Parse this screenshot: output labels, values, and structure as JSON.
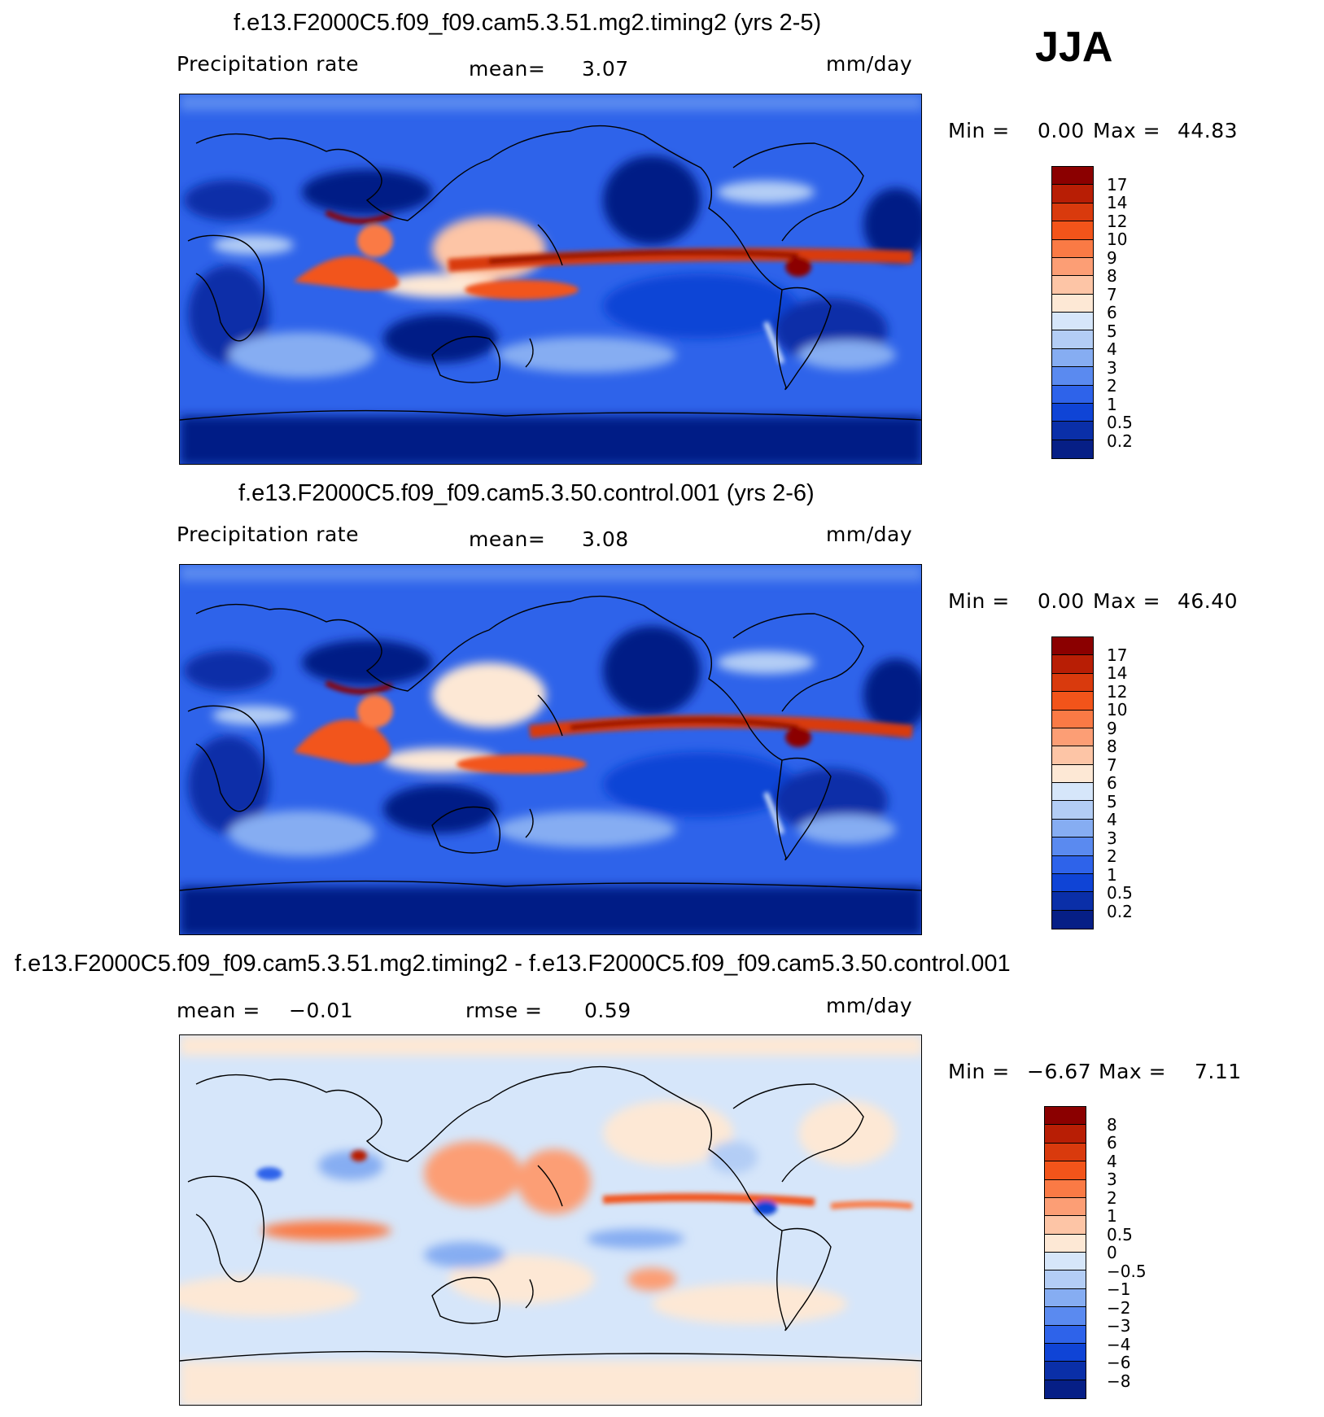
{
  "season": "JJA",
  "panels": [
    {
      "title": "f.e13.F2000C5.f09_f09.cam5.3.51.mg2.timing2 (yrs 2-5)",
      "left_label": "Precipitation  rate",
      "stat_label": "mean=",
      "stat_value": "3.07",
      "units": "mm/day",
      "min_label": "Min  =",
      "min_value": "0.00",
      "max_label": "Max  =",
      "max_value": "44.83",
      "field": "mean"
    },
    {
      "title": "f.e13.F2000C5.f09_f09.cam5.3.50.control.001 (yrs 2-6)",
      "left_label": "Precipitation  rate",
      "stat_label": "mean=",
      "stat_value": "3.08",
      "units": "mm/day",
      "min_label": "Min  =",
      "min_value": "0.00",
      "max_label": "Max  =",
      "max_value": "46.40",
      "field": "mean"
    },
    {
      "title": "f.e13.F2000C5.f09_f09.cam5.3.51.mg2.timing2 - f.e13.F2000C5.f09_f09.cam5.3.50.control.001",
      "mean_label": "mean  =",
      "mean_value": "−0.01",
      "rmse_label": "rmse  =",
      "rmse_value": "0.59",
      "units": "mm/day",
      "min_label": "Min  =",
      "min_value": "−6.67",
      "max_label": "Max  =",
      "max_value": "7.11",
      "field": "diff"
    }
  ],
  "colorbars": {
    "mean": {
      "labels": [
        "17",
        "14",
        "12",
        "10",
        "9",
        "8",
        "7",
        "6",
        "5",
        "4",
        "3",
        "2",
        "1",
        "0.5",
        "0.2"
      ],
      "colors": [
        "#8b0000",
        "#b81e05",
        "#d93a0d",
        "#f2541a",
        "#fa7a45",
        "#fc9e75",
        "#fdc5a6",
        "#fde8d5",
        "#d6e6fa",
        "#b3cdf5",
        "#86adf2",
        "#5a8af0",
        "#2e63ea",
        "#0f44d6",
        "#0a2fa8",
        "#061f86"
      ]
    },
    "diff": {
      "labels": [
        "8",
        "6",
        "4",
        "3",
        "2",
        "1",
        "0.5",
        "0",
        "−0.5",
        "−1",
        "−2",
        "−3",
        "−4",
        "−6",
        "−8"
      ],
      "colors": [
        "#8b0000",
        "#b81e05",
        "#d93a0d",
        "#f2541a",
        "#fa7a45",
        "#fc9e75",
        "#fdc5a6",
        "#fde8d5",
        "#d6e6fa",
        "#b3cdf5",
        "#86adf2",
        "#5a8af0",
        "#2e63ea",
        "#0f44d6",
        "#0a2fa8",
        "#061f86"
      ]
    }
  }
}
